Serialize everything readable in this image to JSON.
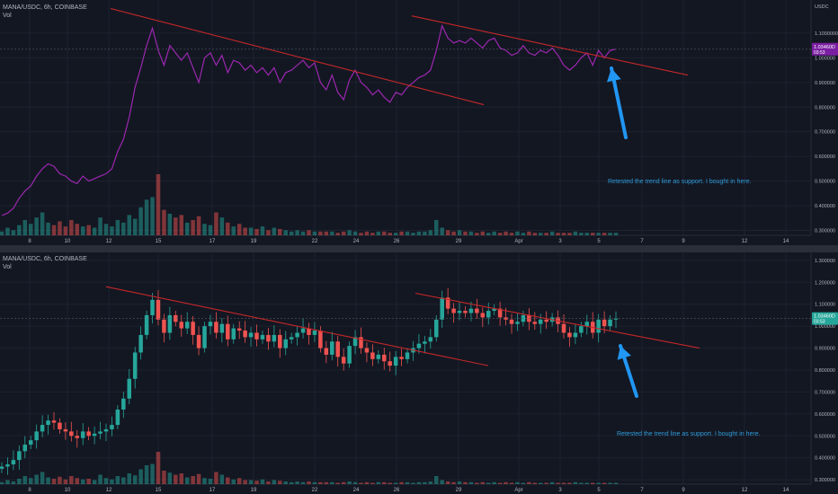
{
  "panes": [
    {
      "id": "top",
      "symbol": "MANA/USDC, 6h, COINBASE",
      "vol_label": "Vol",
      "axis_unit": "USDC",
      "price_tag": "1.03460D",
      "price_tag_sub": "03:53",
      "note": "Retested the trend line as support. I bought in here.",
      "colors": {
        "line": "#9c27b0",
        "tag": "#7b1fa2",
        "trend": "#c62828",
        "arrow": "#2196f3"
      }
    },
    {
      "id": "bottom",
      "symbol": "MANA/USDC, 6h, COINBASE",
      "vol_label": "Vol",
      "price_tag": "1.03460D",
      "price_tag_sub": "03:53",
      "note": "Retested the trend line as support. I bought in here.",
      "colors": {
        "up": "#26a69a",
        "down": "#ef5350",
        "tag": "#26a69a",
        "trend": "#c62828",
        "arrow": "#2196f3"
      }
    }
  ],
  "chart_data": [
    {
      "type": "line",
      "title": "MANA/USDC, 6h, COINBASE",
      "x_ticks": [
        "8",
        "10",
        "12",
        "15",
        "17",
        "19",
        "22",
        "24",
        "26",
        "29",
        "Apr",
        "3",
        "5",
        "7",
        "9",
        "12",
        "14"
      ],
      "y_ticks": [
        "1.1000000",
        "1.000000",
        "0.900000",
        "0.800000",
        "0.700000",
        "0.600000",
        "0.500000",
        "0.400000",
        "0.300000"
      ],
      "ylim": [
        0.28,
        1.22
      ],
      "close": [
        0.36,
        0.37,
        0.39,
        0.43,
        0.46,
        0.48,
        0.52,
        0.55,
        0.57,
        0.56,
        0.53,
        0.52,
        0.5,
        0.49,
        0.52,
        0.5,
        0.51,
        0.52,
        0.53,
        0.55,
        0.62,
        0.67,
        0.76,
        0.88,
        0.96,
        1.05,
        1.12,
        1.03,
        0.97,
        1.05,
        1.02,
        0.99,
        1.02,
        0.96,
        0.9,
        1.0,
        1.02,
        0.97,
        1.01,
        0.94,
        0.99,
        0.98,
        0.95,
        0.97,
        0.94,
        0.96,
        0.93,
        0.96,
        0.9,
        0.94,
        0.95,
        0.97,
        0.99,
        0.96,
        0.98,
        0.9,
        0.87,
        0.93,
        0.86,
        0.83,
        0.91,
        0.95,
        0.9,
        0.88,
        0.85,
        0.87,
        0.84,
        0.82,
        0.86,
        0.85,
        0.88,
        0.9,
        0.92,
        0.93,
        0.95,
        1.03,
        1.13,
        1.08,
        1.06,
        1.07,
        1.06,
        1.08,
        1.06,
        1.04,
        1.07,
        1.08,
        1.04,
        1.03,
        1.01,
        1.02,
        1.05,
        1.02,
        1.01,
        1.03,
        1.02,
        1.04,
        1.01,
        0.97,
        0.95,
        0.97,
        1.0,
        1.02,
        0.97,
        1.03,
        1.0,
        1.03,
        1.035
      ],
      "volume": [
        3,
        6,
        4,
        8,
        12,
        9,
        14,
        18,
        10,
        8,
        11,
        7,
        12,
        9,
        7,
        8,
        6,
        14,
        9,
        7,
        12,
        10,
        16,
        13,
        22,
        28,
        30,
        48,
        20,
        17,
        14,
        16,
        10,
        12,
        15,
        9,
        8,
        18,
        14,
        10,
        7,
        9,
        6,
        6,
        5,
        7,
        4,
        6,
        5,
        4,
        3,
        4,
        3,
        4,
        3,
        3,
        3,
        3,
        2,
        3,
        4,
        3,
        2,
        3,
        2,
        3,
        3,
        2,
        2,
        3,
        3,
        2,
        3,
        3,
        4,
        12,
        6,
        4,
        3,
        4,
        3,
        3,
        2,
        3,
        2,
        3,
        2,
        3,
        2,
        3,
        2,
        3,
        2,
        2,
        2,
        3,
        2,
        2,
        2,
        3,
        2,
        2,
        2,
        2,
        2,
        2,
        2
      ],
      "trend_lines": [
        {
          "from": [
            "7",
            "1.2"
          ],
          "to": [
            "24",
            "0.81"
          ]
        },
        {
          "from": [
            "28",
            "1.17"
          ],
          "to": [
            "9",
            "0.93"
          ]
        }
      ]
    },
    {
      "type": "candlestick",
      "title": "MANA/USDC, 6h, COINBASE",
      "x_ticks": [
        "8",
        "10",
        "12",
        "15",
        "17",
        "19",
        "22",
        "24",
        "26",
        "29",
        "Apr",
        "3",
        "5",
        "7",
        "9",
        "12",
        "14"
      ],
      "y_ticks": [
        "1.300000",
        "1.200000",
        "1.100000",
        "1.000000",
        "0.900000",
        "0.800000",
        "0.700000",
        "0.600000",
        "0.500000",
        "0.400000",
        "0.300000"
      ],
      "ylim": [
        0.28,
        1.32
      ],
      "close": [
        0.36,
        0.37,
        0.39,
        0.43,
        0.46,
        0.48,
        0.52,
        0.55,
        0.57,
        0.56,
        0.53,
        0.52,
        0.5,
        0.49,
        0.52,
        0.5,
        0.51,
        0.52,
        0.53,
        0.55,
        0.62,
        0.67,
        0.76,
        0.88,
        0.96,
        1.05,
        1.12,
        1.03,
        0.97,
        1.05,
        1.02,
        0.99,
        1.02,
        0.96,
        0.9,
        1.0,
        1.02,
        0.97,
        1.01,
        0.94,
        0.99,
        0.98,
        0.95,
        0.97,
        0.94,
        0.96,
        0.93,
        0.96,
        0.9,
        0.94,
        0.95,
        0.97,
        0.99,
        0.96,
        0.98,
        0.9,
        0.87,
        0.93,
        0.86,
        0.83,
        0.91,
        0.95,
        0.9,
        0.88,
        0.85,
        0.87,
        0.84,
        0.82,
        0.86,
        0.85,
        0.88,
        0.9,
        0.92,
        0.93,
        0.95,
        1.03,
        1.13,
        1.08,
        1.06,
        1.07,
        1.06,
        1.08,
        1.06,
        1.04,
        1.07,
        1.08,
        1.04,
        1.03,
        1.01,
        1.02,
        1.05,
        1.02,
        1.01,
        1.03,
        1.02,
        1.04,
        1.01,
        0.97,
        0.95,
        0.97,
        1.0,
        1.02,
        0.97,
        1.03,
        1.0,
        1.03,
        1.035
      ],
      "volume": [
        3,
        6,
        4,
        8,
        12,
        9,
        14,
        18,
        10,
        8,
        11,
        7,
        12,
        9,
        7,
        8,
        6,
        14,
        9,
        7,
        12,
        10,
        16,
        13,
        22,
        28,
        30,
        48,
        20,
        17,
        14,
        16,
        10,
        12,
        15,
        9,
        8,
        18,
        14,
        10,
        7,
        9,
        6,
        6,
        5,
        7,
        4,
        6,
        5,
        4,
        3,
        4,
        3,
        4,
        3,
        3,
        3,
        3,
        2,
        3,
        4,
        3,
        2,
        3,
        2,
        3,
        3,
        2,
        2,
        3,
        3,
        2,
        3,
        3,
        4,
        12,
        6,
        4,
        3,
        4,
        3,
        3,
        2,
        3,
        2,
        3,
        2,
        3,
        2,
        3,
        2,
        3,
        2,
        2,
        2,
        3,
        2,
        2,
        2,
        3,
        2,
        2,
        2,
        2,
        2,
        2,
        2
      ],
      "trend_lines": [
        {
          "from": [
            "7",
            "1.18"
          ],
          "to": [
            "24",
            "0.82"
          ]
        },
        {
          "from": [
            "28",
            "1.15"
          ],
          "to": [
            "9",
            "0.9"
          ]
        }
      ]
    }
  ]
}
